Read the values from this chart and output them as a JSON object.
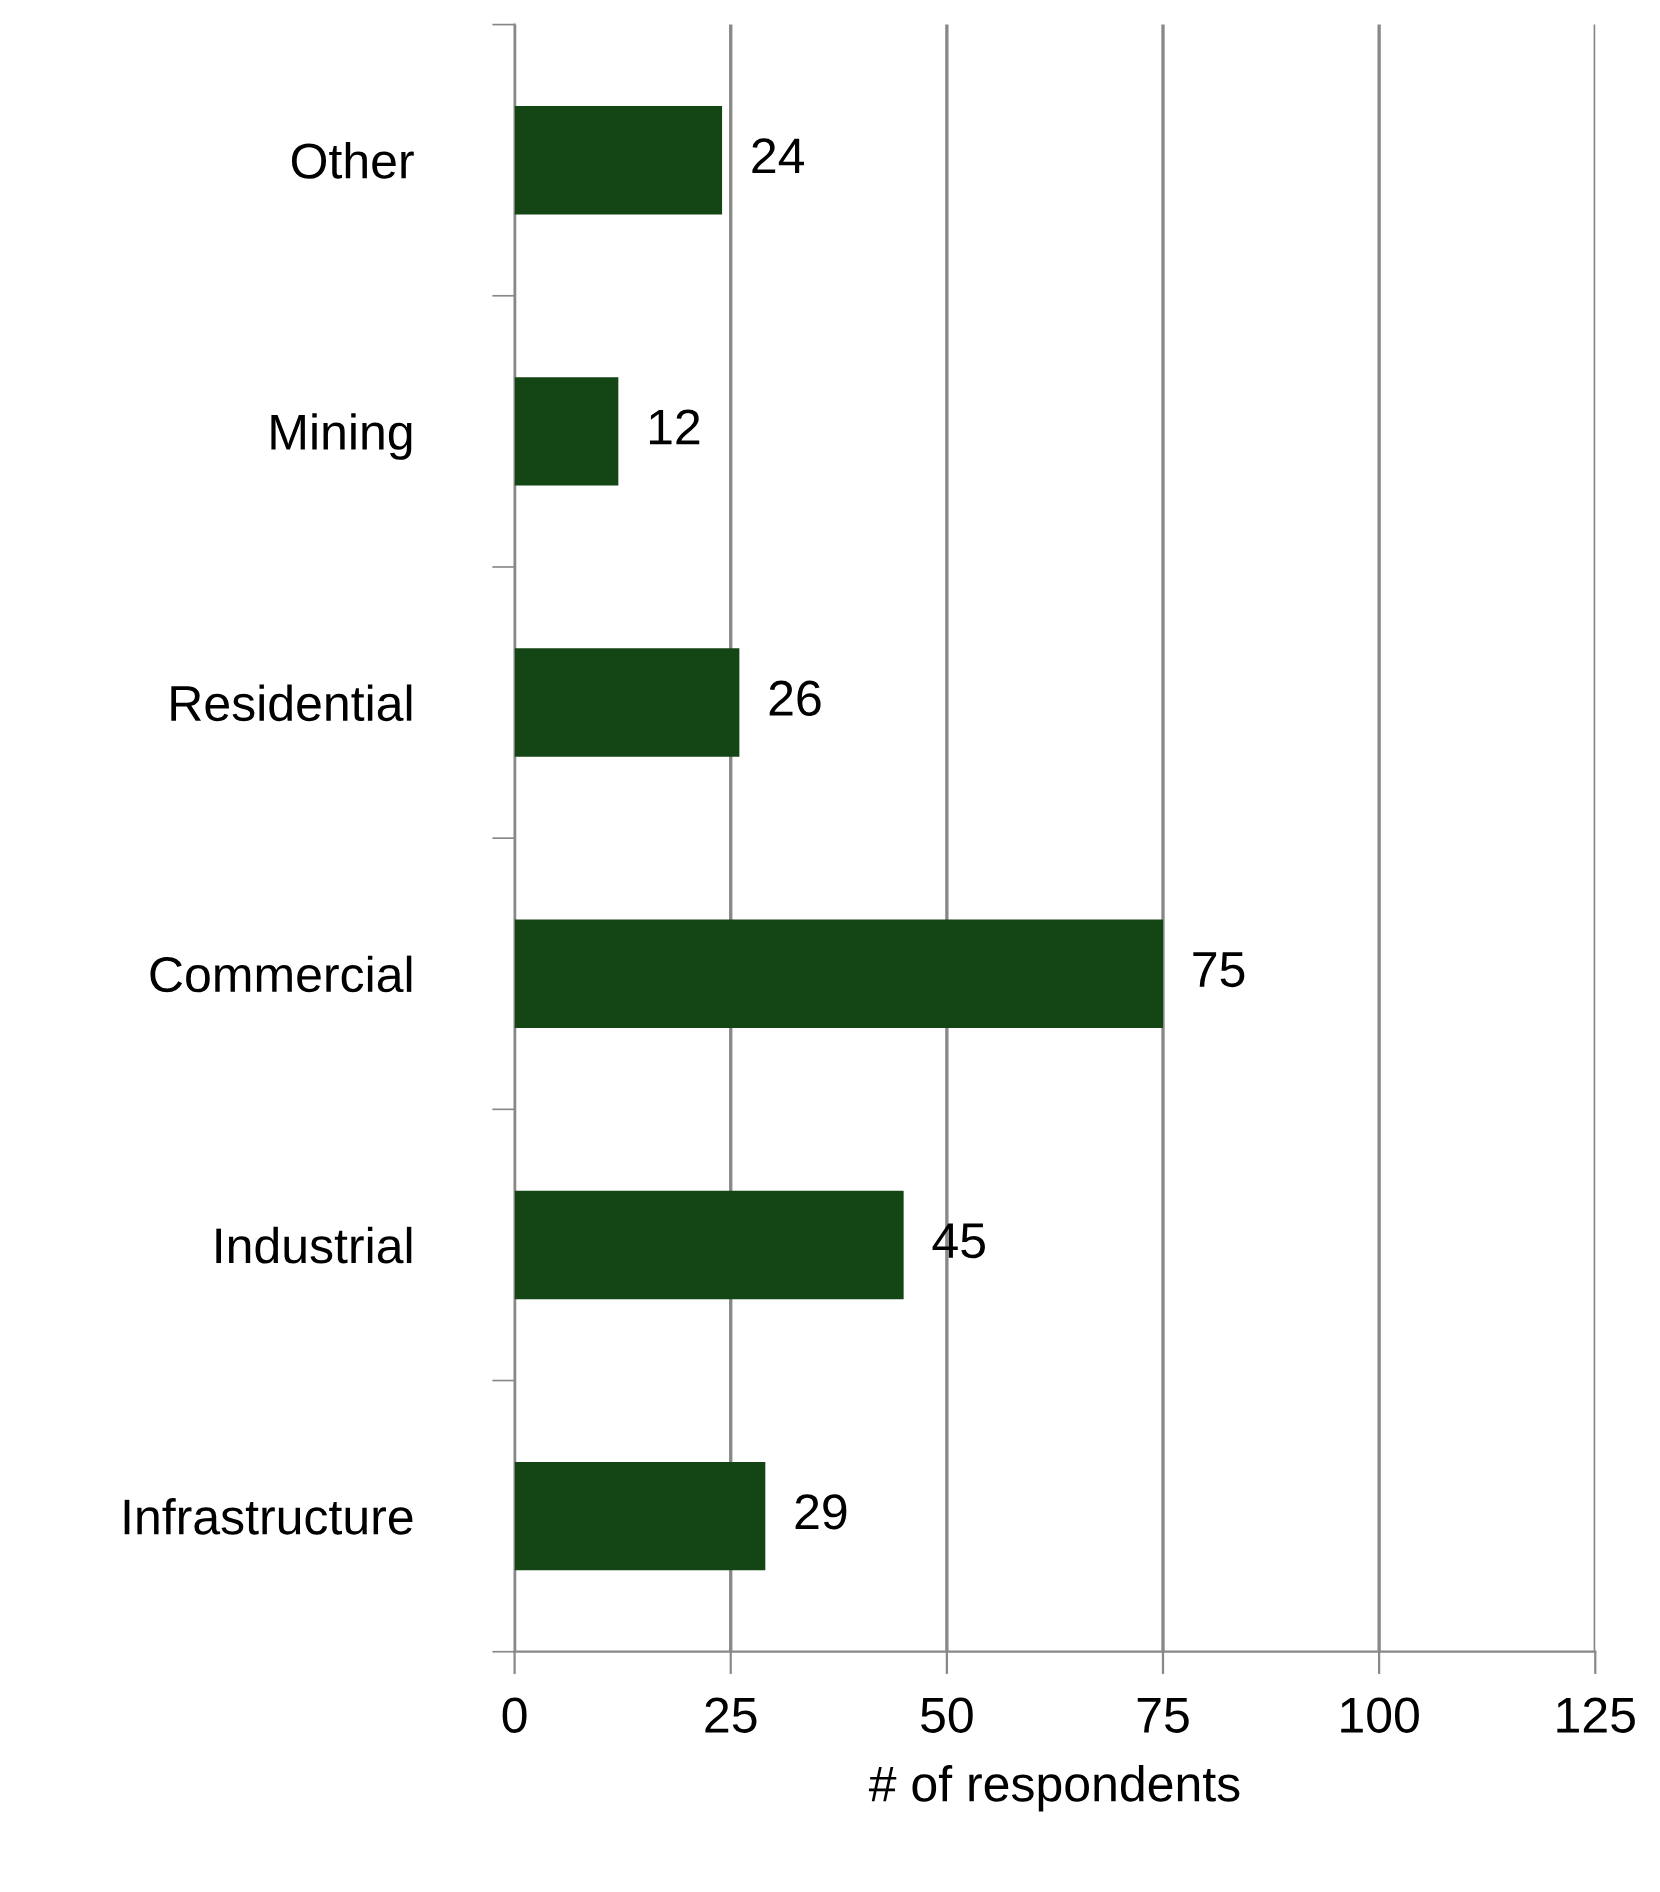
{
  "chart_data": {
    "type": "bar",
    "orientation": "horizontal",
    "xlabel": "# of respondents",
    "categories": [
      "Other",
      "Mining",
      "Residential",
      "Commercial",
      "Industrial",
      "Infrastructure"
    ],
    "values": [
      24,
      12,
      26,
      75,
      45,
      29
    ],
    "color": "#144514",
    "xlim": [
      0,
      125
    ],
    "xticks": [
      0,
      25,
      50,
      75,
      100,
      125
    ],
    "grid": "x",
    "data_labels": true
  }
}
